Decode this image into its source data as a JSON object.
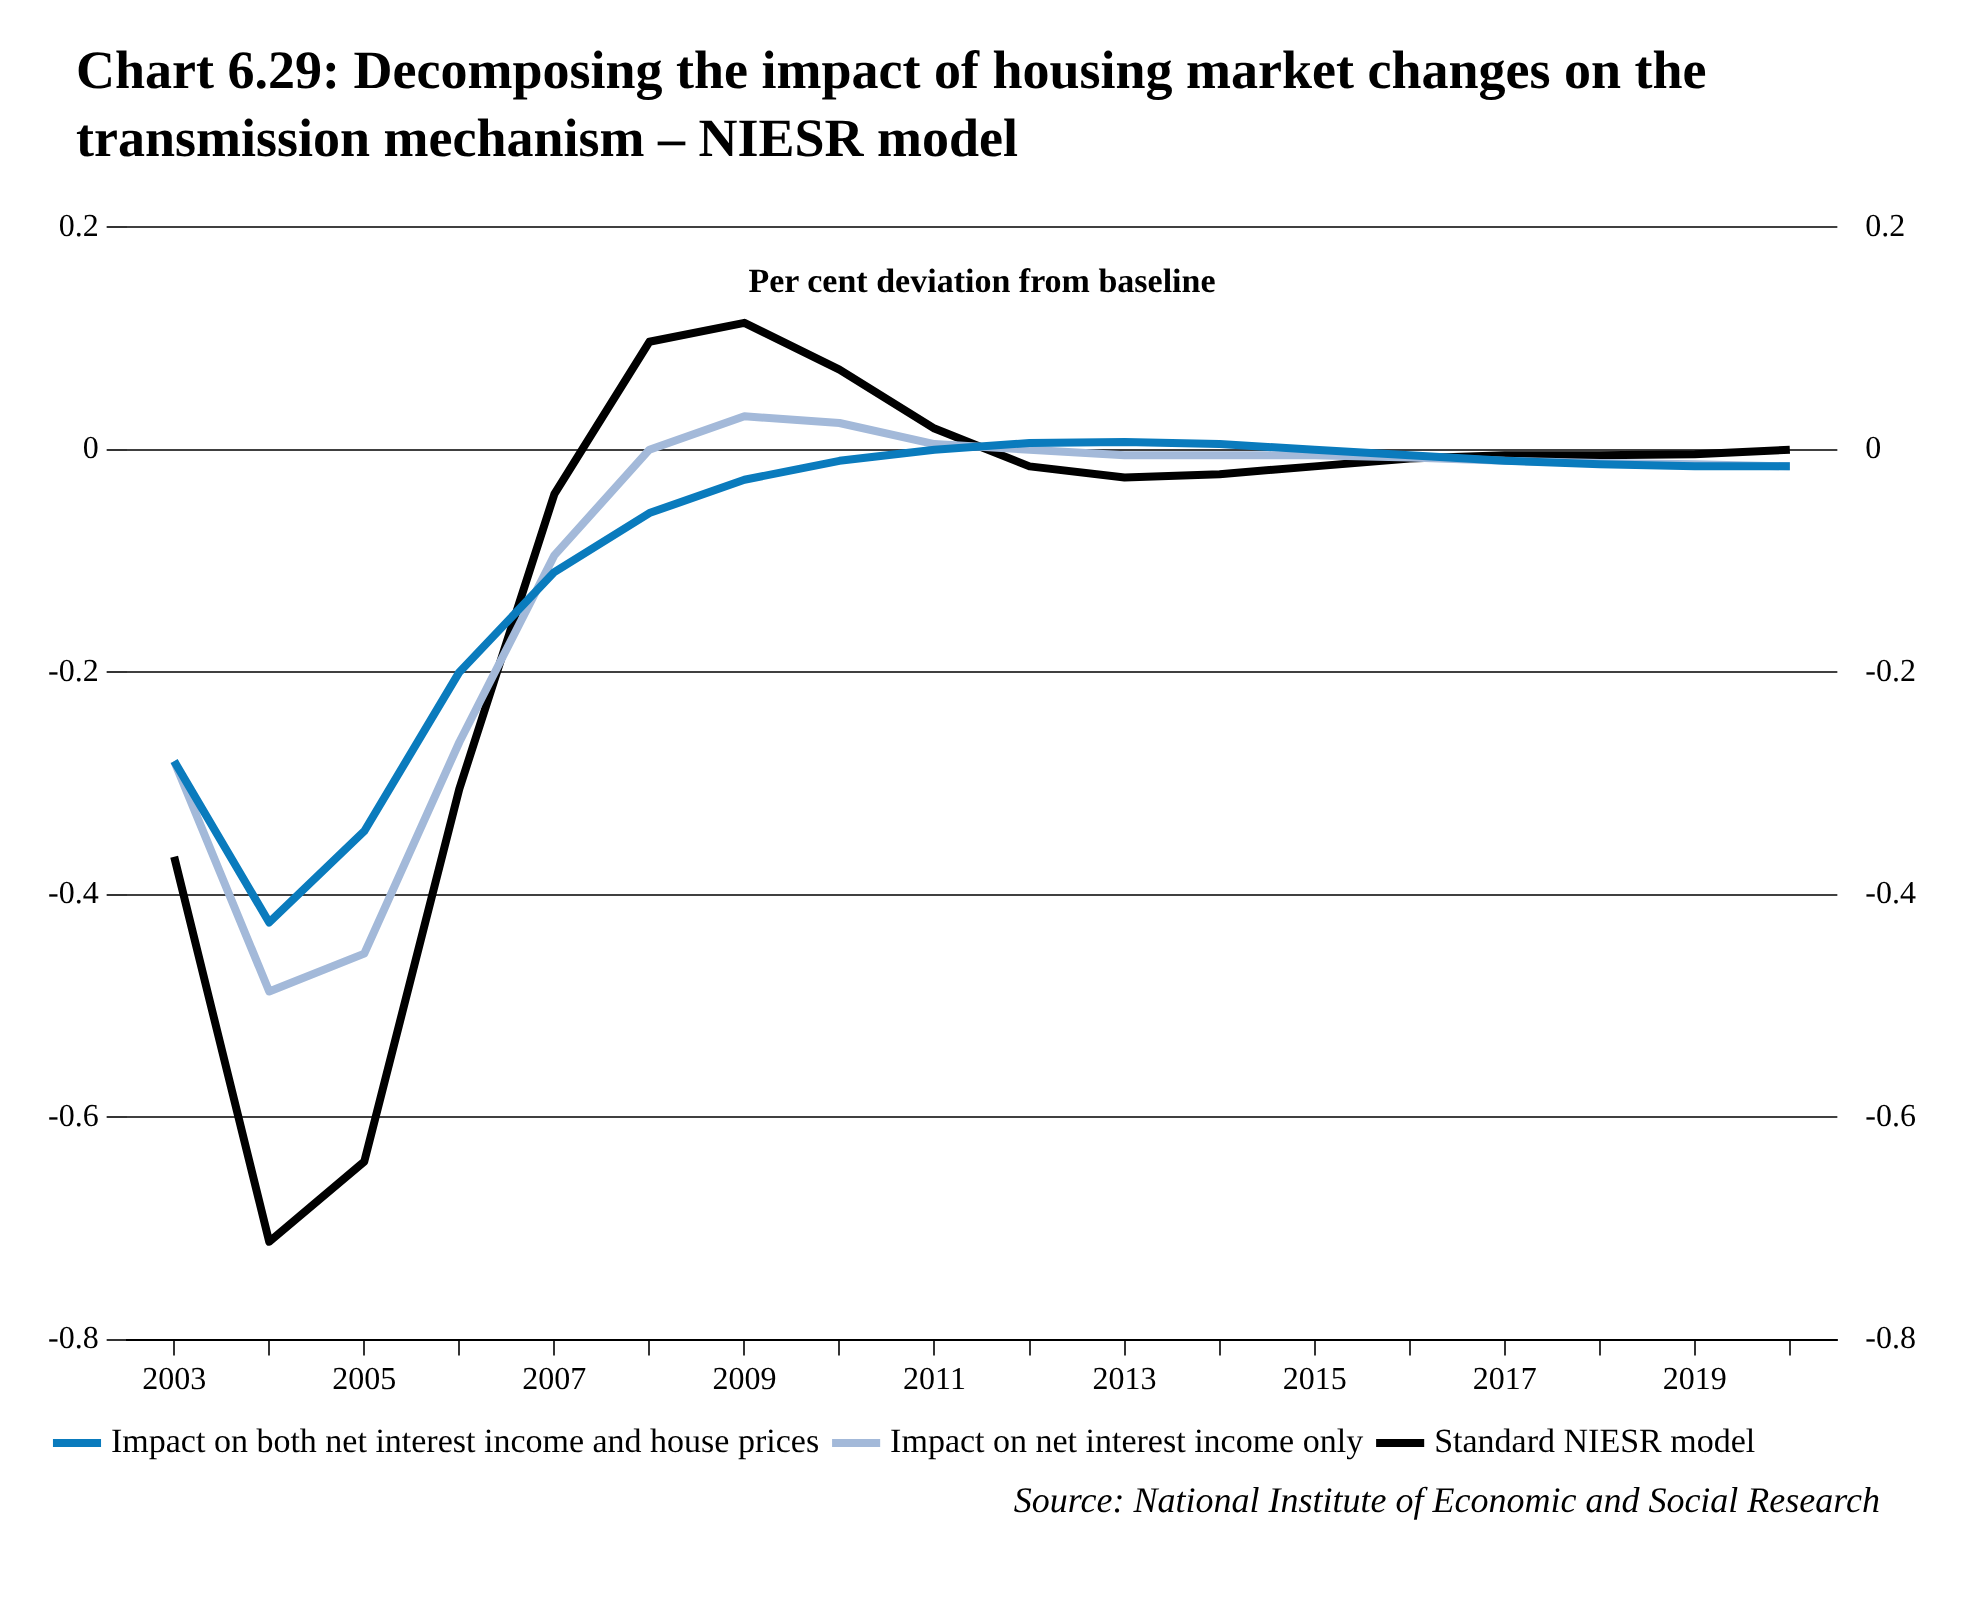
{
  "chart_data": {
    "type": "line",
    "title": "Chart 6.29: Decomposing the impact of housing market changes on the transmission mechanism – NIESR model",
    "subtitle": "Per cent deviation from baseline",
    "annotations": [
      "Source: National Institute of Economic and Social Research"
    ],
    "x": [
      2003,
      2004,
      2005,
      2006,
      2007,
      2008,
      2009,
      2010,
      2011,
      2012,
      2013,
      2014,
      2015,
      2016,
      2017,
      2018,
      2019,
      2020
    ],
    "series": [
      {
        "name": "Impact on both net interest income and house prices",
        "color": "#0a7bbd",
        "values": [
          -0.28,
          -0.425,
          -0.343,
          -0.2,
          -0.11,
          -0.057,
          -0.027,
          -0.01,
          0,
          0.006,
          0.007,
          0.005,
          0,
          -0.005,
          -0.01,
          -0.013,
          -0.015,
          -0.015
        ]
      },
      {
        "name": "Impact on net interest income only",
        "color": "#a3b9d9",
        "values": [
          -0.28,
          -0.487,
          -0.453,
          -0.263,
          -0.095,
          0,
          0.03,
          0.024,
          0.005,
          0,
          -0.005,
          -0.005,
          -0.005,
          -0.007,
          -0.01,
          -0.012,
          -0.013,
          -0.015
        ]
      },
      {
        "name": "Standard NIESR model",
        "color": "#000000",
        "values": [
          -0.366,
          -0.712,
          -0.64,
          -0.305,
          -0.04,
          0.097,
          0.114,
          0.072,
          0.019,
          -0.015,
          -0.025,
          -0.022,
          -0.015,
          -0.008,
          -0.005,
          -0.005,
          -0.004,
          0
        ]
      }
    ],
    "xlim": [
      2002.5,
      2020.5
    ],
    "xticks": [
      2003,
      {
        "value": 2004,
        "label": null
      },
      2005,
      {
        "value": 2006,
        "label": null
      },
      2007,
      {
        "value": 2008,
        "label": null
      },
      2009,
      {
        "value": 2010,
        "label": null
      },
      2011,
      {
        "value": 2012,
        "label": null
      },
      2013,
      {
        "value": 2014,
        "label": null
      },
      2015,
      {
        "value": 2016,
        "label": null
      },
      2017,
      {
        "value": 2018,
        "label": null
      },
      2019,
      {
        "value": 2020,
        "label": null
      }
    ],
    "ylim": [
      -0.8,
      0.2
    ],
    "yticks": [
      -0.8,
      -0.6,
      -0.4,
      -0.2,
      0,
      0.2
    ],
    "y2lim": [
      -0.8,
      0.2
    ],
    "y2ticks": [
      -0.8,
      -0.6,
      -0.4,
      -0.2,
      0,
      0.2
    ],
    "grid": "y",
    "legend": "bottom",
    "marker": "none",
    "line_style": "solid"
  }
}
